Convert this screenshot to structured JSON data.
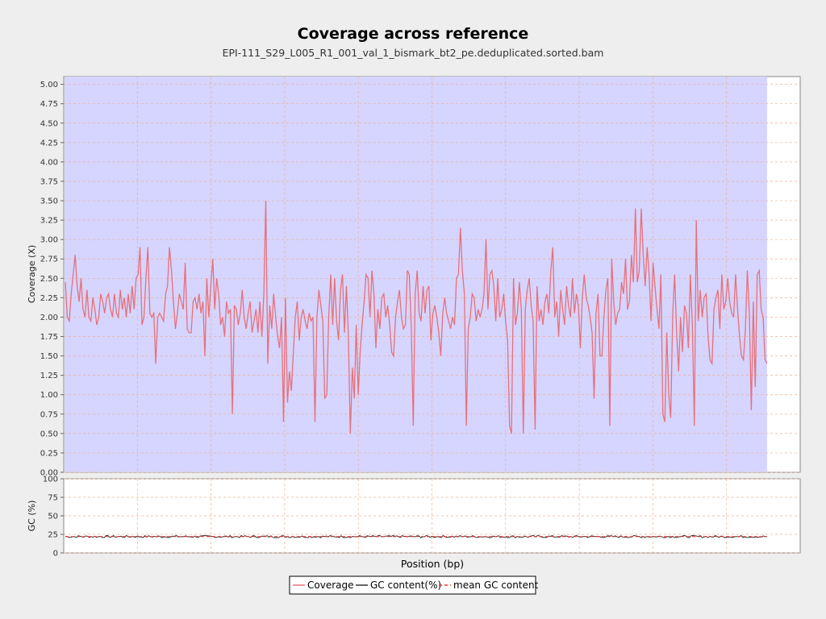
{
  "colors": {
    "background": "#eeeeee",
    "plot_background": "#ffffff",
    "coverage_fill": "#d5d5ff",
    "coverage_line": "#e8707a",
    "gc_line": "#333333",
    "gc_mean": "#e83030",
    "grid": "#f0b090"
  },
  "chart_data": {
    "type": "line",
    "title": "Coverage across reference",
    "subtitle": "EPI-111_S29_L005_R1_001_val_1_bismark_bt2_pe.deduplicated.sorted.bam",
    "xlabel": "Position (bp)",
    "x_tick_labels": [],
    "grid": true,
    "legend_position": "bottom",
    "legend": [
      {
        "label": "Coverage",
        "style": "solid",
        "color": "#e8707a"
      },
      {
        "label": "GC content(%)",
        "style": "solid",
        "color": "#333333"
      },
      {
        "label": "mean GC content",
        "style": "dashed",
        "color": "#e83030"
      }
    ],
    "coverage_panel": {
      "ylabel": "Coverage (X)",
      "ylim": [
        0,
        5.1
      ],
      "yticks": [
        "0.00",
        "0.25",
        "0.50",
        "0.75",
        "1.00",
        "1.25",
        "1.50",
        "1.75",
        "2.00",
        "2.25",
        "2.50",
        "2.75",
        "3.00",
        "3.25",
        "3.50",
        "3.75",
        "4.00",
        "4.25",
        "4.50",
        "4.75",
        "5.00"
      ],
      "band_ylim": [
        0,
        5.1
      ],
      "data_extent_fraction": 0.955,
      "series": [
        {
          "name": "Coverage",
          "values": [
            2.45,
            2.0,
            1.95,
            2.3,
            2.55,
            2.8,
            2.4,
            2.2,
            2.5,
            2.1,
            2.0,
            2.35,
            2.0,
            1.95,
            2.25,
            2.1,
            1.9,
            2.0,
            2.3,
            2.2,
            2.05,
            2.25,
            2.3,
            2.1,
            2.0,
            2.3,
            2.05,
            2.0,
            2.35,
            2.1,
            2.25,
            2.0,
            2.3,
            2.05,
            2.4,
            2.1,
            2.5,
            2.55,
            2.9,
            1.9,
            2.0,
            2.5,
            2.9,
            2.05,
            2.0,
            2.05,
            1.4,
            2.0,
            2.05,
            2.0,
            1.95,
            2.3,
            2.4,
            2.9,
            2.6,
            2.2,
            1.85,
            2.05,
            2.3,
            2.2,
            2.1,
            2.7,
            1.85,
            1.8,
            1.8,
            2.2,
            2.25,
            2.1,
            2.3,
            2.05,
            2.2,
            1.5,
            2.5,
            2.0,
            2.4,
            2.75,
            2.1,
            2.5,
            2.3,
            1.9,
            2.0,
            1.75,
            2.2,
            2.05,
            2.1,
            0.75,
            2.15,
            2.1,
            1.9,
            2.05,
            2.35,
            2.0,
            1.85,
            2.05,
            2.2,
            1.8,
            1.95,
            2.1,
            1.8,
            2.2,
            1.75,
            2.3,
            3.5,
            1.4,
            2.15,
            1.85,
            2.3,
            2.0,
            1.75,
            1.6,
            2.0,
            0.65,
            2.25,
            0.9,
            1.3,
            1.05,
            1.55,
            2.0,
            2.2,
            1.7,
            2.0,
            2.1,
            1.95,
            1.85,
            2.05,
            1.95,
            2.0,
            0.65,
            2.0,
            2.35,
            2.15,
            1.95,
            0.95,
            1.0,
            2.0,
            2.55,
            1.9,
            2.5,
            1.95,
            1.7,
            2.35,
            2.55,
            1.8,
            2.4,
            1.75,
            0.5,
            1.35,
            0.95,
            1.9,
            1.0,
            1.55,
            1.9,
            2.2,
            2.55,
            2.5,
            2.0,
            2.6,
            2.3,
            1.6,
            2.1,
            1.85,
            2.25,
            2.3,
            2.0,
            2.15,
            1.9,
            1.55,
            1.5,
            2.0,
            2.2,
            2.35,
            2.0,
            1.85,
            1.9,
            2.6,
            2.55,
            1.85,
            0.6,
            2.3,
            2.6,
            2.05,
            1.95,
            2.4,
            2.05,
            2.35,
            2.4,
            1.7,
            2.05,
            2.15,
            2.0,
            1.8,
            1.5,
            2.05,
            2.25,
            2.05,
            1.95,
            1.85,
            2.0,
            1.9,
            2.5,
            2.55,
            3.15,
            2.6,
            2.3,
            0.6,
            1.85,
            2.0,
            2.3,
            2.25,
            1.95,
            2.1,
            2.0,
            2.1,
            2.3,
            3.0,
            2.1,
            2.55,
            2.6,
            2.4,
            1.95,
            2.5,
            2.0,
            2.1,
            2.3,
            1.95,
            1.7,
            0.6,
            0.5,
            2.5,
            1.9,
            2.05,
            2.45,
            2.1,
            0.5,
            2.1,
            2.35,
            2.5,
            2.15,
            1.95,
            0.55,
            2.4,
            1.95,
            2.1,
            1.9,
            2.2,
            2.3,
            2.05,
            2.6,
            2.9,
            2.0,
            2.2,
            1.75,
            2.35,
            2.1,
            1.9,
            2.4,
            2.15,
            2.0,
            2.5,
            2.05,
            2.3,
            2.15,
            1.6,
            2.25,
            2.55,
            2.25,
            2.15,
            2.0,
            1.8,
            0.95,
            2.05,
            2.3,
            1.5,
            1.5,
            2.0,
            2.35,
            2.5,
            0.6,
            2.75,
            2.2,
            1.9,
            2.05,
            2.1,
            2.45,
            2.3,
            2.75,
            2.1,
            2.2,
            2.8,
            2.45,
            3.4,
            2.45,
            2.6,
            3.4,
            2.8,
            2.4,
            2.9,
            2.55,
            1.95,
            2.7,
            2.4,
            2.1,
            1.85,
            2.55,
            0.75,
            0.65,
            1.8,
            1.0,
            0.7,
            2.05,
            2.55,
            1.8,
            1.3,
            2.0,
            1.55,
            2.15,
            2.05,
            1.6,
            2.55,
            1.9,
            0.6,
            3.25,
            1.95,
            2.35,
            2.0,
            2.25,
            2.3,
            1.75,
            1.45,
            1.4,
            2.1,
            2.25,
            2.35,
            1.85,
            2.55,
            2.1,
            2.2,
            2.5,
            2.2,
            2.05,
            2.0,
            2.55,
            2.1,
            1.75,
            1.5,
            1.45,
            1.85,
            2.6,
            2.05,
            0.8,
            2.2,
            1.1,
            2.55,
            2.6,
            2.1,
            2.0,
            1.45,
            1.4
          ]
        }
      ]
    },
    "gc_panel": {
      "ylabel": "GC (%)",
      "ylim": [
        0,
        100
      ],
      "yticks": [
        "0",
        "25",
        "50",
        "75",
        "100"
      ],
      "series": [
        {
          "name": "GC content(%)",
          "mean_value": 22,
          "variation": 1.5,
          "points": 380
        }
      ]
    }
  }
}
